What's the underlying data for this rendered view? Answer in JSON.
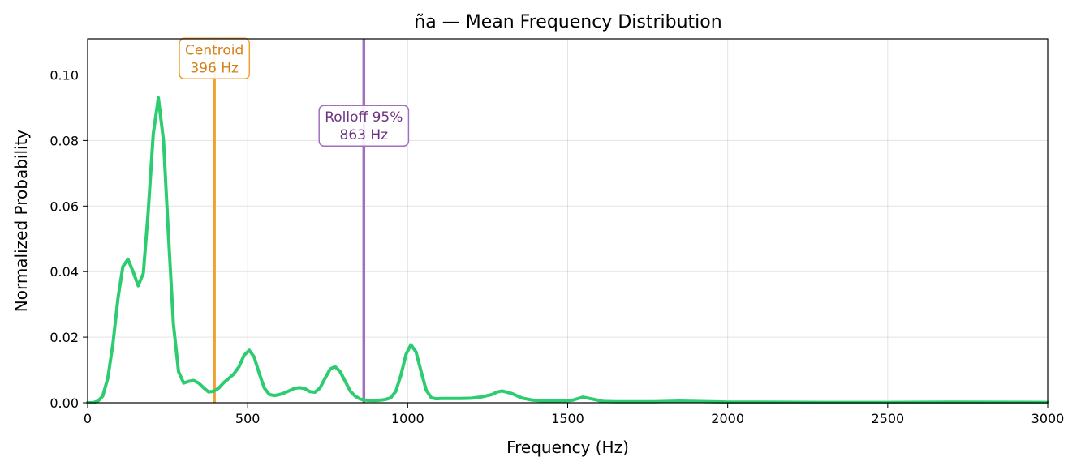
{
  "chart_data": {
    "type": "line",
    "title": "ña  —  Mean Frequency Distribution",
    "xlabel": "Frequency (Hz)",
    "ylabel": "Normalized Probability",
    "xlim": [
      0,
      3000
    ],
    "ylim": [
      0,
      0.111
    ],
    "grid": true,
    "x_ticks": [
      0,
      500,
      1000,
      1500,
      2000,
      2500,
      3000
    ],
    "x_tick_labels": [
      "0",
      "500",
      "1000",
      "1500",
      "2000",
      "2500",
      "3000"
    ],
    "y_ticks": [
      0,
      0.02,
      0.04,
      0.06,
      0.08,
      0.1
    ],
    "y_tick_labels": [
      "0.00",
      "0.02",
      "0.04",
      "0.06",
      "0.08",
      "0.10"
    ],
    "series": [
      {
        "color": "#2ecc71",
        "x": [
          0,
          16,
          32,
          47,
          63,
          79,
          95,
          110,
          126,
          142,
          158,
          174,
          189,
          205,
          221,
          237,
          252,
          268,
          284,
          300,
          315,
          331,
          347,
          363,
          378,
          394,
          410,
          426,
          442,
          457,
          473,
          489,
          505,
          520,
          536,
          552,
          568,
          584,
          600,
          615,
          631,
          647,
          663,
          679,
          694,
          710,
          726,
          742,
          758,
          773,
          789,
          805,
          821,
          836,
          852,
          868,
          884,
          900,
          916,
          931,
          947,
          963,
          979,
          995,
          1010,
          1026,
          1042,
          1058,
          1074,
          1090,
          1105,
          1137,
          1168,
          1200,
          1232,
          1263,
          1280,
          1295,
          1326,
          1358,
          1390,
          1421,
          1452,
          1484,
          1516,
          1547,
          1579,
          1611,
          1650,
          1700,
          1770,
          1850,
          2000,
          2100,
          2300,
          2500,
          2700,
          3000
        ],
        "y": [
          0,
          0,
          0.0005,
          0.002,
          0.0075,
          0.018,
          0.032,
          0.0415,
          0.0438,
          0.04,
          0.0357,
          0.0395,
          0.058,
          0.082,
          0.093,
          0.08,
          0.052,
          0.024,
          0.0095,
          0.006,
          0.0065,
          0.0068,
          0.006,
          0.0045,
          0.0033,
          0.0035,
          0.0045,
          0.0062,
          0.0075,
          0.0088,
          0.011,
          0.0145,
          0.016,
          0.014,
          0.009,
          0.0045,
          0.0025,
          0.0022,
          0.0025,
          0.003,
          0.0037,
          0.0044,
          0.0046,
          0.0043,
          0.0034,
          0.0032,
          0.0045,
          0.0075,
          0.0103,
          0.011,
          0.0095,
          0.0065,
          0.0035,
          0.002,
          0.0011,
          0.0008,
          0.0007,
          0.0007,
          0.0008,
          0.001,
          0.0015,
          0.0035,
          0.0085,
          0.0148,
          0.0177,
          0.0155,
          0.0095,
          0.0038,
          0.0015,
          0.0012,
          0.0013,
          0.0013,
          0.0013,
          0.0014,
          0.0018,
          0.0025,
          0.0033,
          0.0036,
          0.0028,
          0.0014,
          0.0008,
          0.0006,
          0.0005,
          0.0005,
          0.0008,
          0.0017,
          0.0011,
          0.0004,
          0.0003,
          0.0003,
          0.0003,
          0.0005,
          0.0002,
          0.0002,
          0.0001,
          0.0001,
          0.0002,
          0.0001
        ]
      }
    ],
    "annotations": [
      {
        "x": 396,
        "color": "#f0a030",
        "text_color": "#d4801a",
        "label_line1": "Centroid",
        "label_line2": "396 Hz",
        "label_y": 0.105
      },
      {
        "x": 863,
        "color": "#a070c0",
        "text_color": "#6c3483",
        "label_line1": "Rolloff 95%",
        "label_line2": "863 Hz",
        "label_y": 0.0845
      }
    ]
  }
}
